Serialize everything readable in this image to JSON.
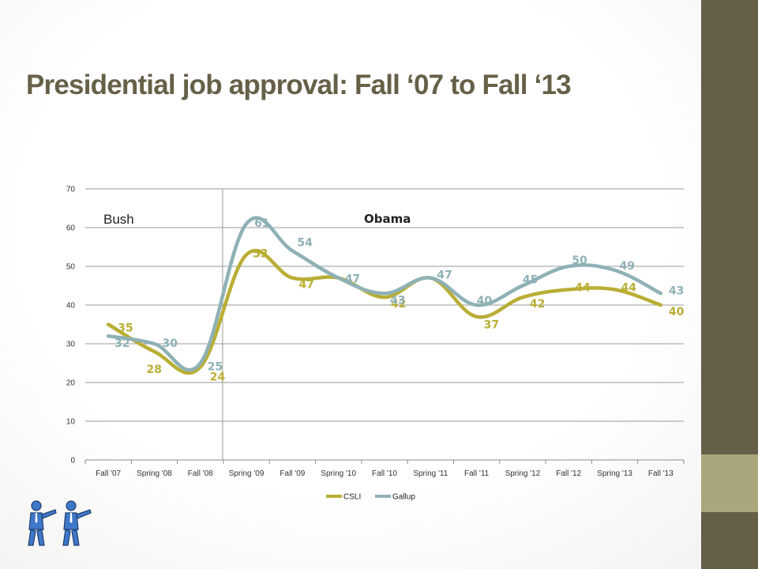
{
  "slide": {
    "title": "Presidential job approval: Fall ‘07 to Fall ‘13"
  },
  "chart_data": {
    "type": "line",
    "smooth": true,
    "categories": [
      "Fall '07",
      "Spring '08",
      "Fall '08",
      "Spring '09",
      "Fall '09",
      "Spring '10",
      "Fall '10",
      "Spring '11",
      "Fall '11",
      "Spring '12",
      "Fall '12",
      "Spring '13",
      "Fall '13"
    ],
    "ylim": [
      0,
      70
    ],
    "yticks": [
      0,
      10,
      20,
      30,
      40,
      50,
      60,
      70
    ],
    "grid": true,
    "legend": "bottom",
    "annotations": [
      {
        "text": "Bush",
        "style": "normal"
      },
      {
        "text": "Obama",
        "style": "bold"
      }
    ],
    "divider_between": [
      "Fall '08",
      "Spring '09"
    ],
    "series": [
      {
        "name": "CSLI",
        "color": "#b9ae35",
        "values": [
          35,
          28,
          24,
          53,
          47,
          47,
          42,
          47,
          37,
          42,
          44,
          44,
          40
        ],
        "labels": [
          "35",
          "28",
          "24",
          "53",
          "47",
          "",
          "42",
          "",
          "37",
          "42",
          "44",
          "44",
          "40"
        ]
      },
      {
        "name": "Gallup",
        "color": "#8fb1b6",
        "values": [
          32,
          30,
          25,
          61,
          54,
          47,
          43,
          47,
          40,
          45,
          50,
          49,
          43
        ],
        "labels": [
          "32",
          "30",
          "25",
          "61",
          "54",
          "47",
          "43",
          "47",
          "40",
          "45",
          "50",
          "49",
          "43"
        ]
      }
    ]
  },
  "clipart": {
    "icon": "pointing-businessman-icon"
  },
  "colors": {
    "title": "#676048",
    "sidebar_dark": "#665f47",
    "sidebar_light": "#aaa67c"
  }
}
